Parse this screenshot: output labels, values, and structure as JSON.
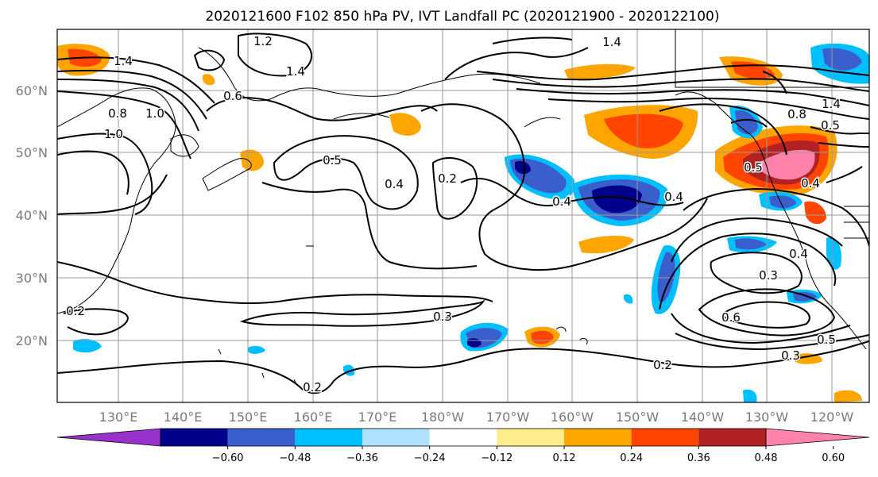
{
  "title": "2020121600 F102 850 hPa PV, IVT Landfall PC (2020121900 - 2020122100)",
  "lat_labels": [
    "60°N",
    "50°N",
    "40°N",
    "30°N",
    "20°N"
  ],
  "lon_labels": [
    "130°E",
    "140°E",
    "150°E",
    "160°E",
    "170°E",
    "180°W",
    "170°W",
    "160°W",
    "150°W",
    "140°W",
    "130°W",
    "120°W"
  ],
  "contour_labels": [
    "1.2",
    "1.4",
    "1.4",
    "1.4",
    "0.8",
    "1.0",
    "1.0",
    "0.6",
    "0.5",
    "0.4",
    "0.2",
    "0.4",
    "0.4",
    "0.4",
    "0.3",
    "0.3",
    "0.6",
    "0.2",
    "0.2",
    "0.2",
    "0.5",
    "0.4",
    "1.4",
    "0.8",
    "0.5",
    "0.3",
    "0.5"
  ],
  "colorbar": {
    "tick_labels": [
      "−0.60",
      "−0.48",
      "−0.36",
      "−0.24",
      "−0.12",
      "0.12",
      "0.24",
      "0.36",
      "0.48",
      "0.60"
    ],
    "colors": [
      "#9932cc",
      "#00008b",
      "#3a5fcd",
      "#00bfff",
      "#b0e2ff",
      "#ffffff",
      "#ffec8b",
      "#ffa500",
      "#ff4500",
      "#b22222",
      "#ff82ab"
    ]
  }
}
